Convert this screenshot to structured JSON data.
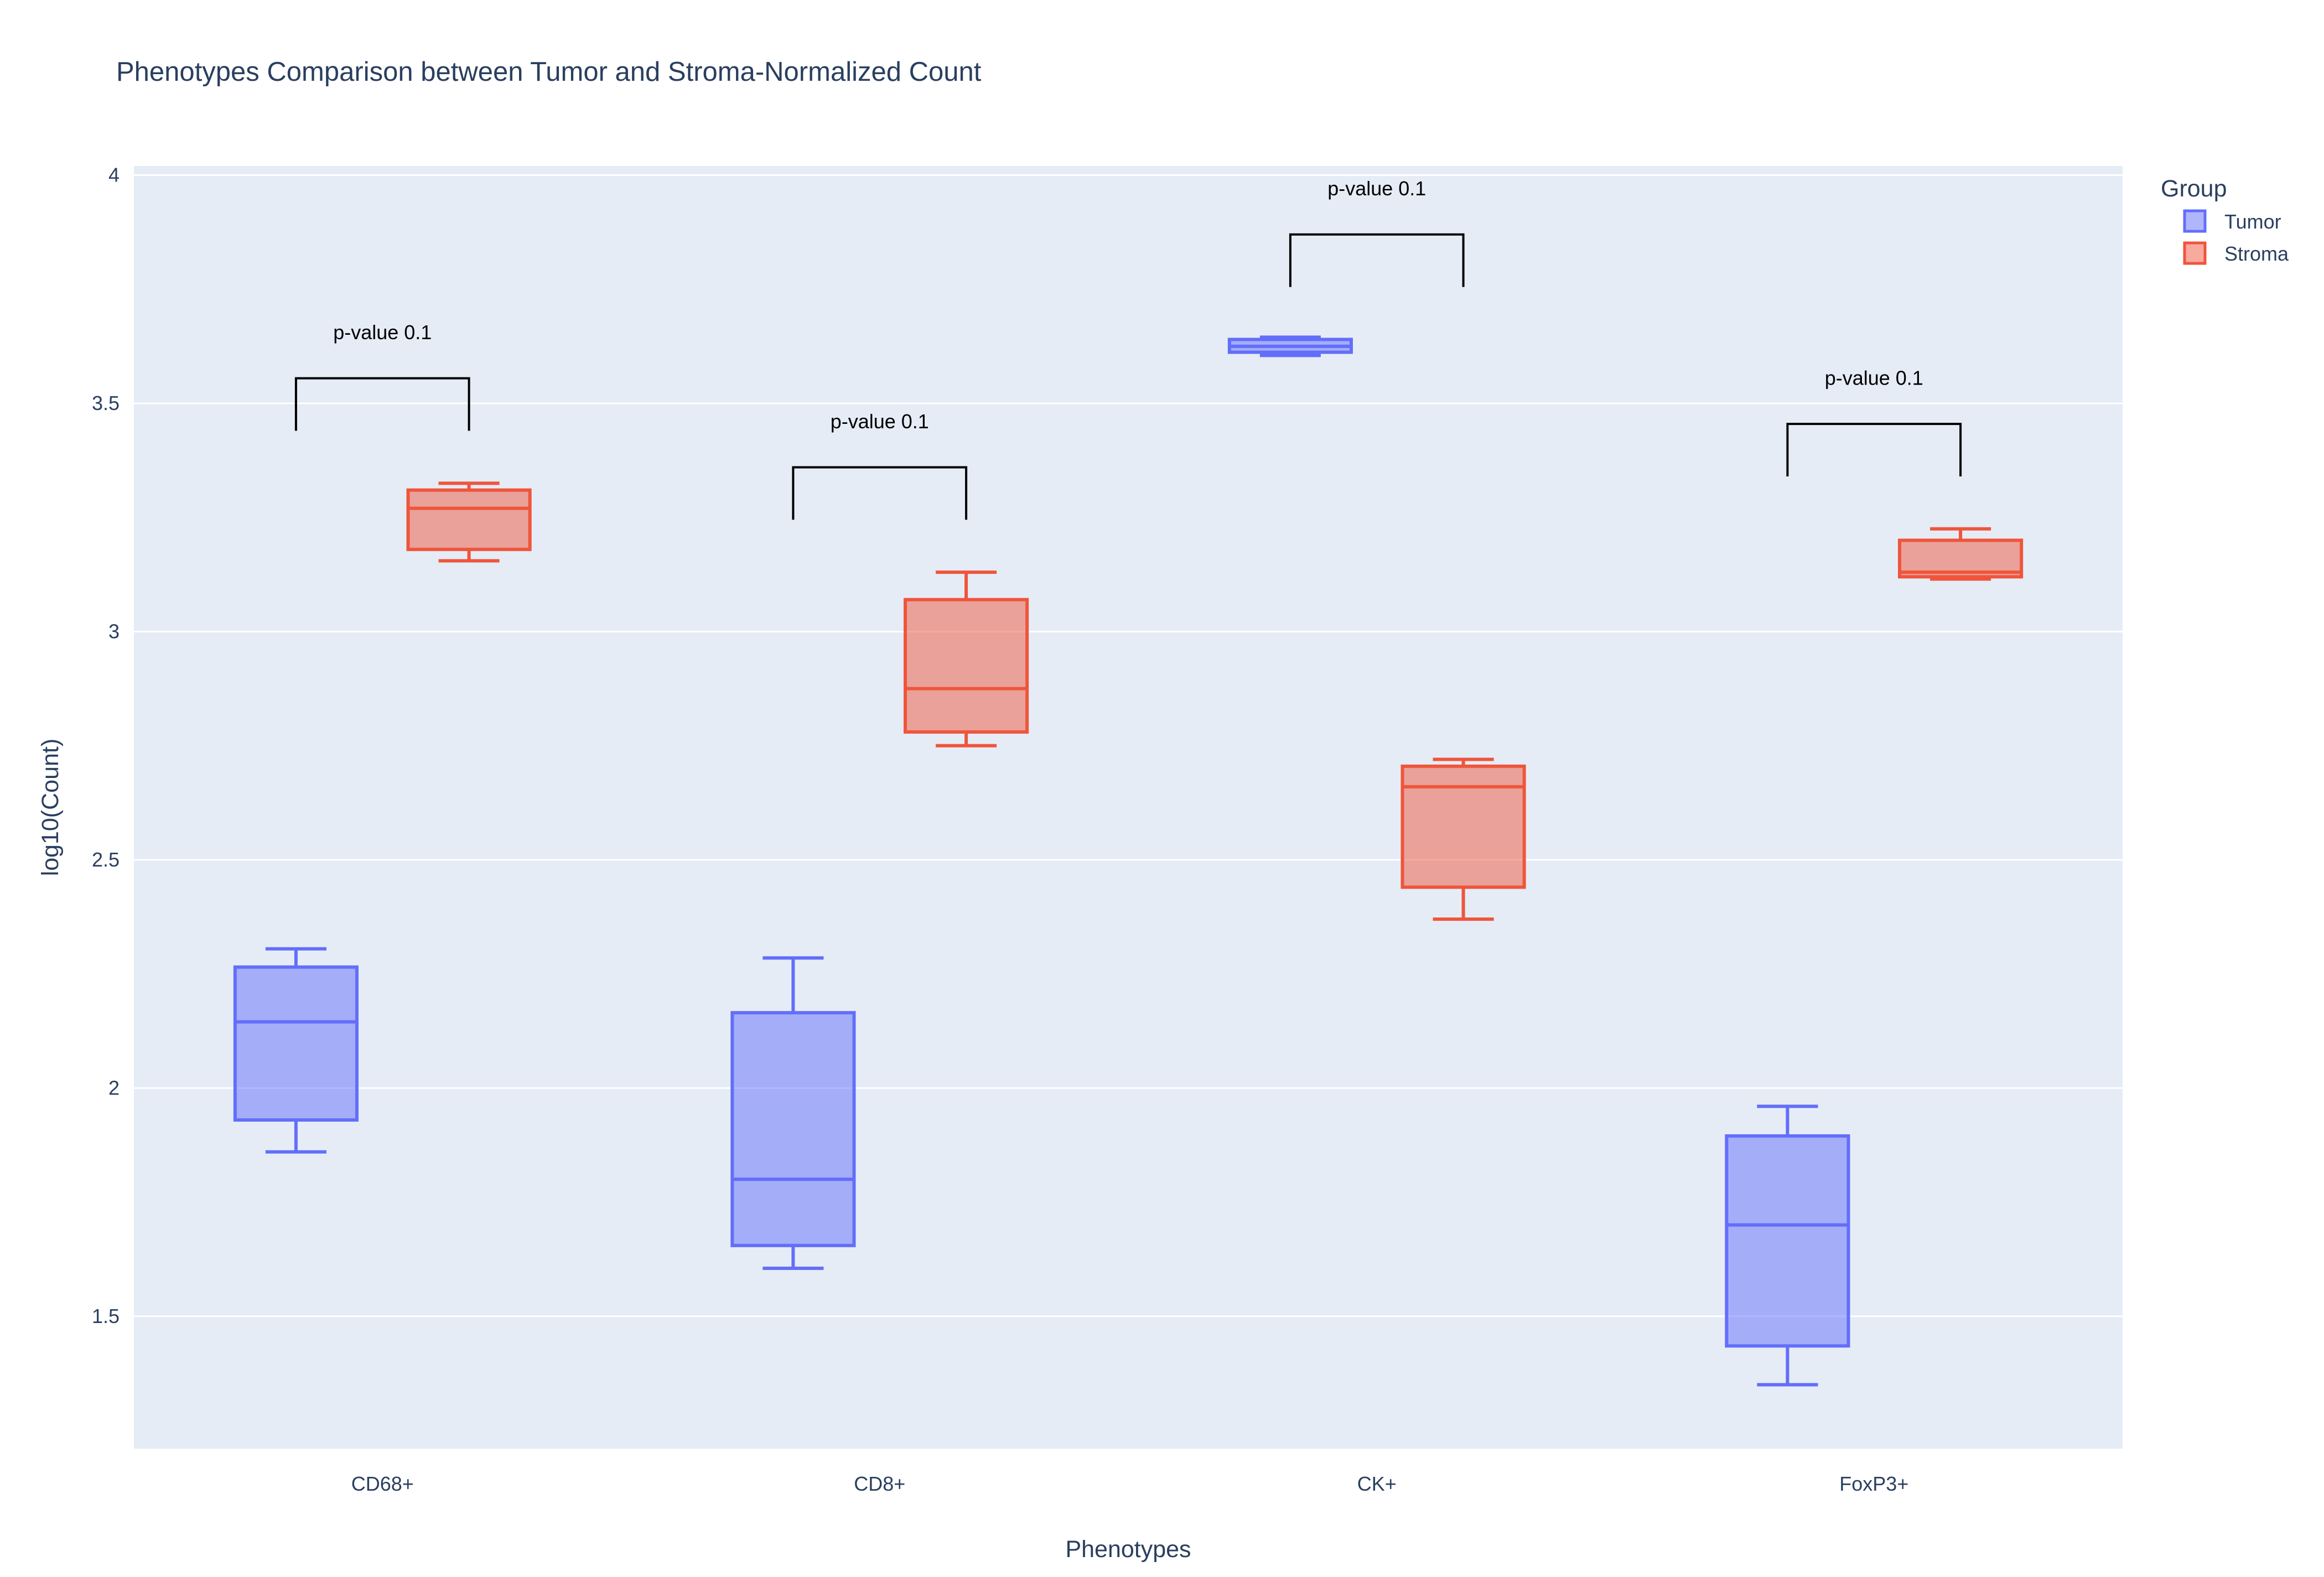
{
  "chart_data": {
    "type": "box",
    "title": "Phenotypes Comparison between Tumor and Stroma-Normalized Count",
    "xlabel": "Phenotypes",
    "ylabel": "log10(Count)",
    "ylim": [
      1.21,
      4.02
    ],
    "yticks": [
      1.5,
      2,
      2.5,
      3,
      3.5,
      4
    ],
    "ytick_labels": [
      "1.5",
      "2",
      "2.5",
      "3",
      "3.5",
      "4"
    ],
    "grid": true,
    "categories": [
      "CD68+",
      "CD8+",
      "CK+",
      "FoxP3+"
    ],
    "legend": {
      "title": "Group",
      "position": "top-right"
    },
    "series": [
      {
        "name": "Tumor",
        "color": "#636efa",
        "fill": "rgba(99,110,250,0.5)",
        "boxes": [
          {
            "min": 1.86,
            "q1": 1.93,
            "median": 2.145,
            "q3": 2.265,
            "max": 2.305
          },
          {
            "min": 1.605,
            "q1": 1.655,
            "median": 1.8,
            "q3": 2.165,
            "max": 2.285
          },
          {
            "min": 3.605,
            "q1": 3.612,
            "median": 3.625,
            "q3": 3.64,
            "max": 3.645
          },
          {
            "min": 1.35,
            "q1": 1.435,
            "median": 1.7,
            "q3": 1.895,
            "max": 1.96
          }
        ]
      },
      {
        "name": "Stroma",
        "color": "#ef553b",
        "fill": "rgba(239,85,59,0.5)",
        "boxes": [
          {
            "min": 3.155,
            "q1": 3.18,
            "median": 3.27,
            "q3": 3.31,
            "max": 3.325
          },
          {
            "min": 2.75,
            "q1": 2.78,
            "median": 2.875,
            "q3": 3.07,
            "max": 3.13
          },
          {
            "min": 2.37,
            "q1": 2.44,
            "median": 2.66,
            "q3": 2.705,
            "max": 2.72
          },
          {
            "min": 3.115,
            "q1": 3.12,
            "median": 3.13,
            "q3": 3.2,
            "max": 3.225
          }
        ]
      }
    ],
    "annotations": [
      {
        "category": "CD68+",
        "text": "p-value 0.1",
        "bracket_top": 3.555,
        "bracket_bottom": 3.44,
        "label_y": 3.655
      },
      {
        "category": "CD8+",
        "text": "p-value 0.1",
        "bracket_top": 3.36,
        "bracket_bottom": 3.245,
        "label_y": 3.46
      },
      {
        "category": "CK+",
        "text": "p-value 0.1",
        "bracket_top": 3.87,
        "bracket_bottom": 3.755,
        "label_y": 3.97
      },
      {
        "category": "FoxP3+",
        "text": "p-value 0.1",
        "bracket_top": 3.455,
        "bracket_bottom": 3.34,
        "label_y": 3.555
      }
    ]
  }
}
